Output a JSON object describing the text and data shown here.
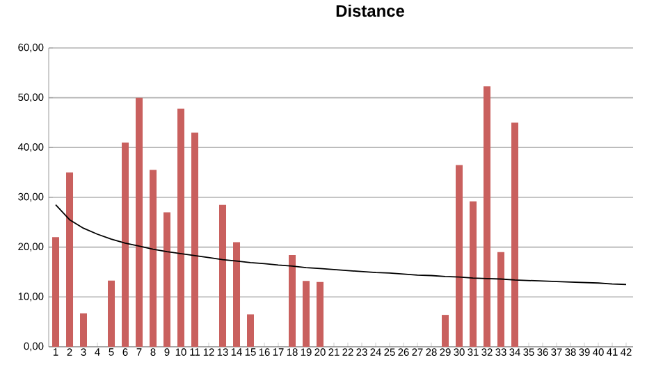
{
  "chart_data": {
    "type": "bar",
    "title": "Distance",
    "categories": [
      "1",
      "2",
      "3",
      "4",
      "5",
      "6",
      "7",
      "8",
      "9",
      "10",
      "11",
      "12",
      "13",
      "14",
      "15",
      "16",
      "17",
      "18",
      "19",
      "20",
      "21",
      "22",
      "23",
      "24",
      "25",
      "26",
      "27",
      "28",
      "29",
      "30",
      "31",
      "32",
      "33",
      "34",
      "35",
      "36",
      "37",
      "38",
      "39",
      "40",
      "41",
      "42"
    ],
    "series": [
      {
        "color": "#c9605e",
        "values": [
          22,
          35,
          6.7,
          null,
          13.3,
          41,
          50,
          35.5,
          27,
          47.8,
          43,
          null,
          28.5,
          21,
          6.5,
          null,
          null,
          18.4,
          13.2,
          13,
          null,
          null,
          null,
          null,
          null,
          null,
          null,
          null,
          6.4,
          36.5,
          29.2,
          52.3,
          19,
          45,
          null,
          null,
          null,
          null,
          null,
          null,
          null,
          null
        ]
      },
      {
        "type": "line",
        "color": "#000000",
        "values": [
          28.5,
          25.5,
          23.8,
          22.6,
          21.6,
          20.8,
          20.2,
          19.6,
          19.1,
          18.7,
          18.3,
          17.9,
          17.5,
          17.2,
          16.9,
          16.7,
          16.4,
          16.2,
          15.9,
          15.7,
          15.5,
          15.3,
          15.1,
          14.9,
          14.8,
          14.6,
          14.4,
          14.3,
          14.1,
          14.0,
          13.8,
          13.7,
          13.6,
          13.4,
          13.3,
          13.2,
          13.1,
          13.0,
          12.9,
          12.8,
          12.6,
          12.5
        ]
      }
    ],
    "ylim": [
      0,
      60
    ],
    "yticks": [
      {
        "value": 0,
        "label": "0,00"
      },
      {
        "value": 10,
        "label": "10,00"
      },
      {
        "value": 20,
        "label": "20,00"
      },
      {
        "value": 30,
        "label": "30,00"
      },
      {
        "value": 40,
        "label": "40,00"
      },
      {
        "value": 50,
        "label": "50,00"
      },
      {
        "value": 60,
        "label": "60,00"
      }
    ],
    "grid": "y"
  }
}
